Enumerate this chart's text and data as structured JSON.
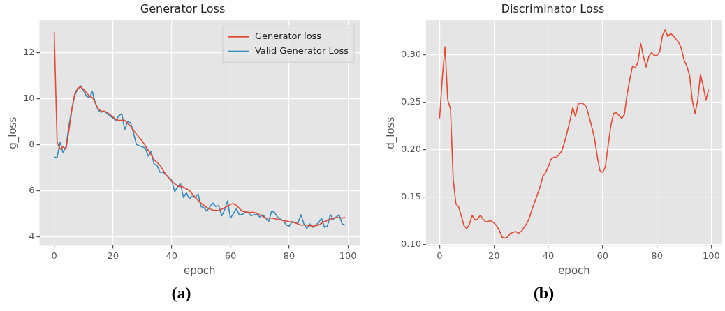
{
  "chart_data": [
    {
      "type": "line",
      "title": "Generator Loss",
      "xlabel": "epoch",
      "ylabel": "g_loss",
      "xlim": [
        -5,
        104
      ],
      "xticks": [
        0,
        20,
        40,
        60,
        80,
        100
      ],
      "ylim": [
        3.6,
        13.4
      ],
      "yticks": [
        4,
        6,
        8,
        10,
        12
      ],
      "grid": true,
      "legend": "top right",
      "series": [
        {
          "name": "Generator loss",
          "color": "#e24a33",
          "x": [
            0,
            1,
            2,
            3,
            4,
            5,
            6,
            7,
            8,
            9,
            10,
            11,
            12,
            13,
            14,
            15,
            16,
            17,
            18,
            19,
            20,
            21,
            22,
            24,
            26,
            28,
            30,
            32,
            34,
            36,
            38,
            40,
            42,
            44,
            46,
            48,
            50,
            52,
            54,
            56,
            58,
            60,
            61,
            62,
            64,
            66,
            68,
            70,
            72,
            74,
            76,
            78,
            80,
            82,
            84,
            86,
            88,
            90,
            92,
            94,
            96,
            98,
            99
          ],
          "values": [
            12.9,
            8.1,
            7.8,
            7.9,
            7.8,
            8.6,
            9.5,
            10.2,
            10.45,
            10.5,
            10.4,
            10.25,
            10.1,
            10.05,
            9.8,
            9.55,
            9.45,
            9.45,
            9.4,
            9.3,
            9.2,
            9.1,
            9.05,
            9.05,
            8.8,
            8.45,
            8.15,
            7.75,
            7.35,
            7.1,
            6.7,
            6.4,
            6.2,
            6.15,
            6.0,
            5.7,
            5.45,
            5.25,
            5.15,
            5.13,
            5.25,
            5.4,
            5.43,
            5.35,
            5.1,
            5.05,
            5.05,
            4.95,
            4.8,
            4.8,
            4.75,
            4.7,
            4.65,
            4.6,
            4.5,
            4.5,
            4.45,
            4.5,
            4.65,
            4.75,
            4.83,
            4.8,
            4.83
          ]
        },
        {
          "name": "Valid Generator Loss",
          "color": "#348abd",
          "x": [
            0,
            1,
            2,
            3,
            4,
            5,
            6,
            7,
            8,
            9,
            10,
            11,
            12,
            13,
            14,
            15,
            16,
            17,
            18,
            19,
            20,
            21,
            22,
            23,
            24,
            25,
            26,
            27,
            28,
            29,
            30,
            31,
            32,
            33,
            34,
            35,
            36,
            37,
            38,
            39,
            40,
            41,
            42,
            43,
            44,
            45,
            46,
            47,
            48,
            49,
            50,
            51,
            52,
            53,
            54,
            55,
            56,
            57,
            58,
            59,
            60,
            61,
            62,
            63,
            64,
            65,
            66,
            67,
            68,
            69,
            70,
            71,
            72,
            73,
            74,
            75,
            76,
            77,
            78,
            79,
            80,
            81,
            82,
            83,
            84,
            85,
            86,
            87,
            88,
            89,
            90,
            91,
            92,
            93,
            94,
            95,
            96,
            97,
            98,
            99
          ],
          "values": [
            7.45,
            7.45,
            8.1,
            7.65,
            7.9,
            8.8,
            9.55,
            10.15,
            10.4,
            10.55,
            10.35,
            10.1,
            10.05,
            10.3,
            9.8,
            9.5,
            9.4,
            9.45,
            9.35,
            9.25,
            9.15,
            9.05,
            9.25,
            9.35,
            8.65,
            9.0,
            8.95,
            8.5,
            8.0,
            7.95,
            7.9,
            7.85,
            7.5,
            7.7,
            7.15,
            7.1,
            6.8,
            6.8,
            6.7,
            6.55,
            6.45,
            5.95,
            6.15,
            6.3,
            5.7,
            5.9,
            5.65,
            5.75,
            5.7,
            5.85,
            5.3,
            5.25,
            5.1,
            5.3,
            5.45,
            5.3,
            5.35,
            4.9,
            5.15,
            5.55,
            4.8,
            5.0,
            5.2,
            4.95,
            4.95,
            5.05,
            5.05,
            4.9,
            4.95,
            4.95,
            4.85,
            4.95,
            4.8,
            4.65,
            5.1,
            5.05,
            4.85,
            4.75,
            4.7,
            4.5,
            4.45,
            4.65,
            4.6,
            4.6,
            4.95,
            4.55,
            4.35,
            4.55,
            4.4,
            4.5,
            4.6,
            4.8,
            4.4,
            4.45,
            4.95,
            4.75,
            4.85,
            4.95,
            4.55,
            4.5
          ]
        }
      ],
      "annotations": [
        "(a)"
      ]
    },
    {
      "type": "line",
      "title": "Discriminator Loss",
      "xlabel": "epoch",
      "ylabel": "d_loss",
      "x": [
        0,
        1,
        2,
        3,
        4,
        5,
        6,
        7,
        8,
        9,
        10,
        11,
        12,
        13,
        14,
        15,
        16,
        17,
        18,
        19,
        20,
        21,
        22,
        23,
        24,
        25,
        26,
        27,
        28,
        29,
        30,
        31,
        32,
        33,
        34,
        35,
        36,
        37,
        38,
        39,
        40,
        41,
        42,
        43,
        44,
        45,
        46,
        47,
        48,
        49,
        50,
        51,
        52,
        53,
        54,
        55,
        56,
        57,
        58,
        59,
        60,
        61,
        62,
        63,
        64,
        65,
        66,
        67,
        68,
        69,
        70,
        71,
        72,
        73,
        74,
        75,
        76,
        77,
        78,
        79,
        80,
        81,
        82,
        83,
        84,
        85,
        86,
        87,
        88,
        89,
        90,
        91,
        92,
        93,
        94,
        95,
        96,
        97,
        98,
        99
      ],
      "xlim": [
        -5,
        104
      ],
      "xticks": [
        0,
        20,
        40,
        60,
        80,
        100
      ],
      "ylim": [
        0.099,
        0.336
      ],
      "yticks": [
        {
          "value": 0.1,
          "label": "0.10"
        },
        0.15,
        {
          "value": 0.2,
          "label": "0.20"
        },
        0.25,
        {
          "value": 0.3,
          "label": "0.30"
        }
      ],
      "grid": true,
      "series": [
        {
          "color": "#e24a33",
          "values": [
            0.233,
            0.276,
            0.308,
            0.252,
            0.243,
            0.169,
            0.143,
            0.14,
            0.13,
            0.12,
            0.117,
            0.122,
            0.131,
            0.126,
            0.127,
            0.131,
            0.127,
            0.124,
            0.125,
            0.125,
            0.123,
            0.12,
            0.115,
            0.108,
            0.107,
            0.108,
            0.112,
            0.113,
            0.114,
            0.112,
            0.114,
            0.118,
            0.122,
            0.128,
            0.137,
            0.145,
            0.153,
            0.161,
            0.172,
            0.176,
            0.182,
            0.19,
            0.192,
            0.192,
            0.195,
            0.199,
            0.208,
            0.219,
            0.231,
            0.244,
            0.235,
            0.248,
            0.249,
            0.248,
            0.245,
            0.235,
            0.224,
            0.212,
            0.193,
            0.178,
            0.176,
            0.182,
            0.204,
            0.225,
            0.238,
            0.239,
            0.236,
            0.233,
            0.237,
            0.258,
            0.274,
            0.288,
            0.286,
            0.292,
            0.312,
            0.298,
            0.287,
            0.298,
            0.302,
            0.299,
            0.299,
            0.303,
            0.32,
            0.326,
            0.319,
            0.322,
            0.32,
            0.316,
            0.313,
            0.306,
            0.294,
            0.288,
            0.278,
            0.252,
            0.238,
            0.252,
            0.279,
            0.267,
            0.252,
            0.263
          ]
        }
      ],
      "annotations": [
        "(b)"
      ]
    }
  ]
}
